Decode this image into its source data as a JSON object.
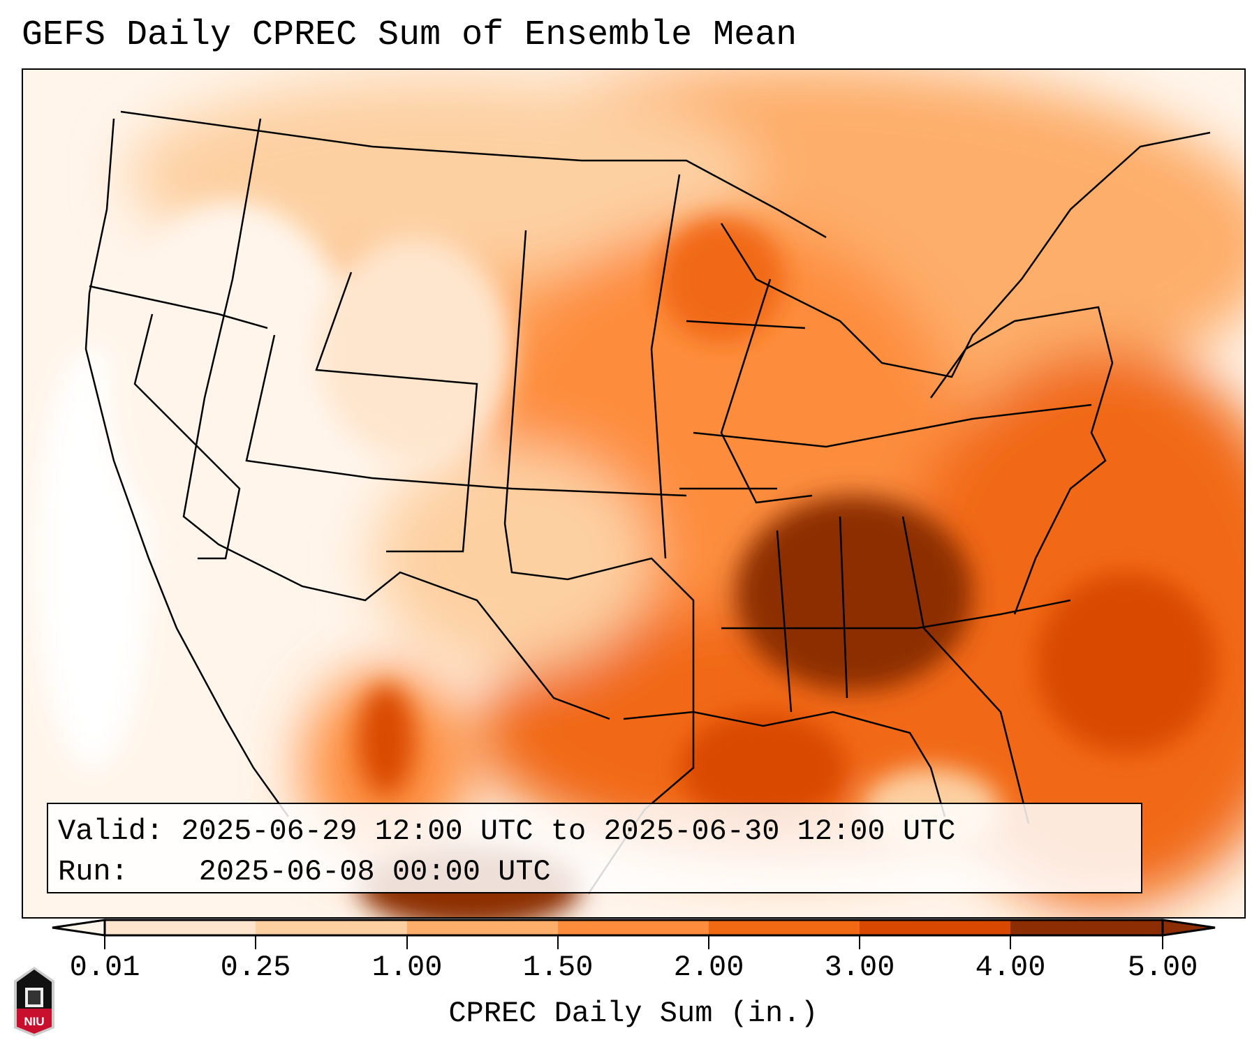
{
  "title": "GEFS Daily CPREC Sum of Ensemble Mean",
  "info": {
    "valid_label": "Valid:",
    "valid_value": "2025-06-29 12:00 UTC to 2025-06-30 12:00 UTC",
    "run_label": "Run:",
    "run_value": "2025-06-08 00:00 UTC"
  },
  "colorbar": {
    "label": "CPREC Daily Sum (in.)",
    "ticks": [
      "0.01",
      "0.25",
      "1.00",
      "1.50",
      "2.00",
      "3.00",
      "4.00",
      "5.00"
    ],
    "colors": [
      "#fff5eb",
      "#fee6ce",
      "#fdd0a2",
      "#fdae6b",
      "#fd8d3c",
      "#f16913",
      "#d94801",
      "#8c2d04"
    ]
  },
  "logo": {
    "text": "NIU"
  }
}
